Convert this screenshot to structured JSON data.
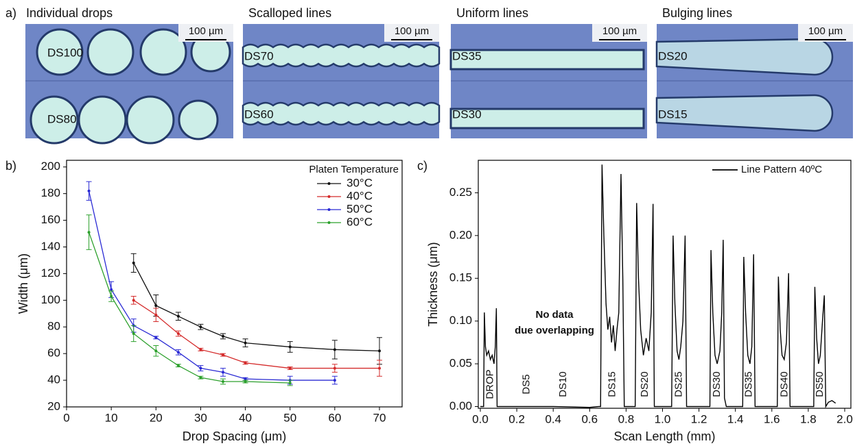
{
  "panel_a": {
    "label": "a)",
    "panels": [
      {
        "title": "Individual drops",
        "scale_bar": "100 µm",
        "labels": [
          "DS100",
          "DS80"
        ]
      },
      {
        "title": "Scalloped lines",
        "scale_bar": "100 µm",
        "labels": [
          "DS70",
          "DS60"
        ]
      },
      {
        "title": "Uniform lines",
        "scale_bar": "100 µm",
        "labels": [
          "DS35",
          "DS30"
        ]
      },
      {
        "title": "Bulging lines",
        "scale_bar": "100 µm",
        "labels": [
          "DS20",
          "DS15"
        ]
      }
    ]
  },
  "chart_data": [
    {
      "type": "line",
      "panel_label": "b)",
      "x_label": "Drop Spacing (μm)",
      "y_label": "Width (μm)",
      "legend_title": "Platen Temperature",
      "legend_position": "upper right",
      "x": [
        5,
        10,
        15,
        20,
        25,
        30,
        35,
        40,
        50,
        60,
        70
      ],
      "series": [
        {
          "name": "30°C",
          "color": "#111111",
          "values": [
            null,
            null,
            128,
            96,
            88,
            80,
            73,
            68,
            65,
            63,
            62
          ],
          "errors": [
            null,
            null,
            7,
            8,
            3,
            2,
            2,
            3,
            4,
            7,
            10
          ]
        },
        {
          "name": "40°C",
          "color": "#d42a2a",
          "values": [
            null,
            null,
            100,
            89,
            75,
            63,
            59,
            53,
            49,
            49,
            49
          ],
          "errors": [
            null,
            null,
            3,
            5,
            2,
            1,
            1,
            1,
            1,
            3,
            6
          ]
        },
        {
          "name": "50°C",
          "color": "#2a2ad4",
          "values": [
            182,
            108,
            81,
            72,
            61,
            49,
            46,
            41,
            40,
            40,
            null
          ],
          "errors": [
            7,
            6,
            5,
            1,
            2,
            2,
            3,
            1,
            3,
            3,
            null
          ]
        },
        {
          "name": "60°C",
          "color": "#2ca02c",
          "values": [
            151,
            103,
            75,
            62,
            51,
            42,
            39,
            39,
            38,
            null,
            null
          ],
          "errors": [
            13,
            4,
            6,
            4,
            1,
            1,
            2,
            1,
            2,
            null,
            null
          ]
        }
      ],
      "xlim": [
        0,
        75
      ],
      "xticks": [
        0,
        10,
        20,
        30,
        40,
        50,
        60,
        70
      ],
      "ylim": [
        20,
        205
      ],
      "yticks": [
        20,
        40,
        60,
        80,
        100,
        120,
        140,
        160,
        180,
        200
      ]
    },
    {
      "type": "line",
      "panel_label": "c)",
      "x_label": "Scan Length (mm)",
      "y_label": "Thickness (μm)",
      "legend_position": "upper right",
      "annotations": [
        "No data",
        "due overlapping"
      ],
      "segment_labels": [
        "DROP",
        "DS5",
        "DS10",
        "DS15",
        "DS20",
        "DS25",
        "DS30",
        "DS35",
        "DS40",
        "DS50"
      ],
      "x": [
        0.0,
        0.018,
        0.022,
        0.028,
        0.035,
        0.045,
        0.055,
        0.065,
        0.075,
        0.082,
        0.088,
        0.092,
        0.2,
        0.4,
        0.6,
        0.65,
        0.66,
        0.668,
        0.678,
        0.69,
        0.7,
        0.71,
        0.72,
        0.73,
        0.74,
        0.75,
        0.76,
        0.772,
        0.782,
        0.79,
        0.85,
        0.858,
        0.868,
        0.88,
        0.895,
        0.91,
        0.925,
        0.938,
        0.948,
        0.955,
        1.05,
        1.058,
        1.068,
        1.08,
        1.09,
        1.1,
        1.112,
        1.124,
        1.132,
        1.26,
        1.266,
        1.276,
        1.288,
        1.3,
        1.315,
        1.325,
        1.333,
        1.34,
        1.35,
        1.44,
        1.446,
        1.456,
        1.468,
        1.48,
        1.49,
        1.5,
        1.508,
        1.63,
        1.636,
        1.646,
        1.656,
        1.668,
        1.68,
        1.692,
        1.7,
        1.83,
        1.836,
        1.846,
        1.856,
        1.866,
        1.878,
        1.888,
        1.896,
        1.91,
        1.93,
        1.95
      ],
      "series": [
        {
          "name": "Line Pattern 40ºC",
          "color": "#000000",
          "values": [
            0.0,
            0.0,
            0.11,
            0.07,
            0.06,
            0.065,
            0.055,
            0.06,
            0.05,
            0.07,
            0.115,
            0.0,
            0.0,
            0.0,
            -0.001,
            0.0,
            0.0,
            0.283,
            0.2,
            0.12,
            0.09,
            0.105,
            0.075,
            0.095,
            0.065,
            0.09,
            0.11,
            0.272,
            0.15,
            0.0,
            0.0,
            0.238,
            0.15,
            0.09,
            0.06,
            0.08,
            0.065,
            0.11,
            0.237,
            0.0,
            0.0,
            0.2,
            0.12,
            0.065,
            0.055,
            0.07,
            0.1,
            0.2,
            0.0,
            0.0,
            0.183,
            0.11,
            0.06,
            0.05,
            0.065,
            0.11,
            0.195,
            0.01,
            0.0,
            0.0,
            0.175,
            0.11,
            0.06,
            0.05,
            0.07,
            0.178,
            0.0,
            0.0,
            0.152,
            0.09,
            0.06,
            0.055,
            0.075,
            0.156,
            0.0,
            0.0,
            0.14,
            0.08,
            0.05,
            0.06,
            0.1,
            0.13,
            0.0,
            0.005,
            0.007,
            0.004
          ]
        }
      ],
      "xlim": [
        0,
        2.0
      ],
      "xticks": [
        {
          "value": 0,
          "label": "0.0"
        },
        {
          "value": 0.2,
          "label": "0.2"
        },
        {
          "value": 0.4,
          "label": "0.4"
        },
        {
          "value": 0.6,
          "label": "0.6"
        },
        {
          "value": 0.8,
          "label": "0.8"
        },
        {
          "value": 1.0,
          "label": "1.0"
        },
        {
          "value": 1.2,
          "label": "1.2"
        },
        {
          "value": 1.4,
          "label": "1.4"
        },
        {
          "value": 1.6,
          "label": "1.6"
        },
        {
          "value": 1.8,
          "label": "1.8"
        },
        {
          "value": 2.0,
          "label": "2.0"
        }
      ],
      "ylim": [
        -0.002,
        0.288
      ],
      "yticks": [
        {
          "value": 0,
          "label": "0.00"
        },
        {
          "value": 0.05,
          "label": "0.05"
        },
        {
          "value": 0.1,
          "label": "0.10"
        },
        {
          "value": 0.15,
          "label": "0.15"
        },
        {
          "value": 0.2,
          "label": "0.20"
        },
        {
          "value": 0.25,
          "label": "0.25"
        }
      ]
    }
  ]
}
